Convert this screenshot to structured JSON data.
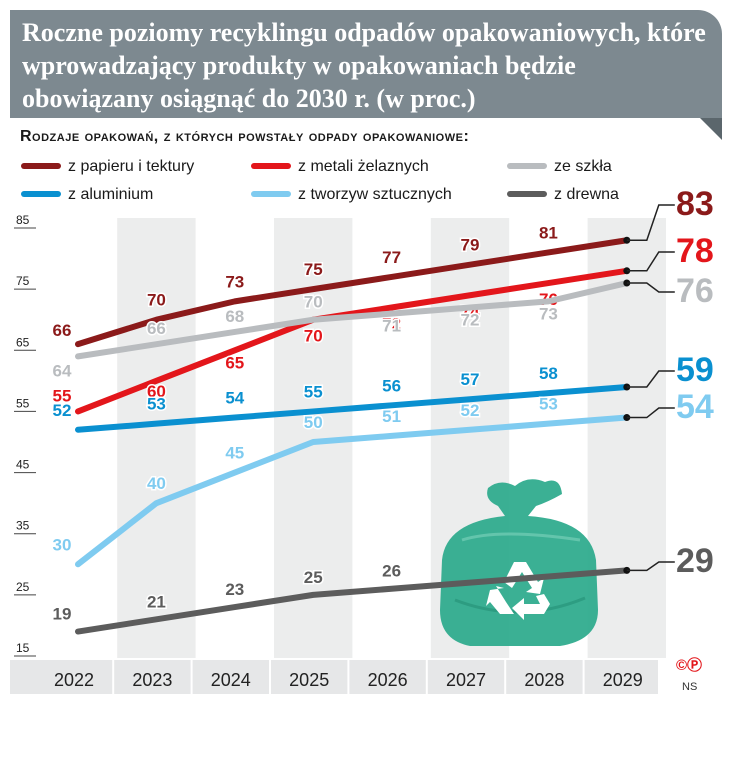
{
  "title": "Roczne poziomy recyklingu odpadów opakowaniowych, które wprowadzający produkty w opakowaniach będzie obowiązany osiągnąć do 2030 r. (w proc.)",
  "legend_title": "Rodzaje opakowań, z których powstały odpady opakowaniowe:",
  "credit": {
    "copyright": "©Ⓟ",
    "author": "NS"
  },
  "chart_data": {
    "type": "line",
    "x": [
      "2022",
      "2023",
      "2024",
      "2025",
      "2026",
      "2027",
      "2028",
      "2029"
    ],
    "ylim": [
      15,
      85
    ],
    "yticks": [
      15,
      25,
      35,
      45,
      55,
      65,
      75,
      85
    ],
    "grid": false,
    "legend_position": "top",
    "series": [
      {
        "name": "z papieru i tektury",
        "color": "#8b1a1a",
        "values": [
          66,
          70,
          73,
          75,
          77,
          79,
          81,
          83
        ],
        "labels": [
          "66",
          "70",
          "73",
          "75",
          "77",
          "79",
          "81",
          ""
        ],
        "final_label": "83"
      },
      {
        "name": "z metali żelaznych",
        "color": "#e3161b",
        "values": [
          55,
          60,
          65,
          70,
          72,
          74,
          76,
          78
        ],
        "labels": [
          "55",
          "60",
          "65",
          "70",
          "72",
          "74",
          "76",
          ""
        ],
        "final_label": "78"
      },
      {
        "name": "ze szkła",
        "color": "#b9bcbf",
        "values": [
          64,
          66,
          68,
          70,
          71,
          72,
          73,
          76
        ],
        "labels": [
          "64",
          "66",
          "68",
          "70",
          "71",
          "72",
          "73",
          ""
        ],
        "final_label": "76"
      },
      {
        "name": "z aluminium",
        "color": "#0a90d0",
        "values": [
          52,
          53,
          54,
          55,
          56,
          57,
          58,
          59
        ],
        "labels": [
          "52",
          "53",
          "54",
          "55",
          "56",
          "57",
          "58",
          ""
        ],
        "final_label": "59"
      },
      {
        "name": "z tworzyw sztucznych",
        "color": "#7fcbf0",
        "values": [
          30,
          40,
          45,
          50,
          51,
          52,
          53,
          54
        ],
        "labels": [
          "30",
          "40",
          "45",
          "50",
          "51",
          "52",
          "53",
          ""
        ],
        "final_label": "54"
      },
      {
        "name": "z drewna",
        "color": "#5c5c5c",
        "values": [
          19,
          21,
          23,
          25,
          26,
          27,
          28,
          29
        ],
        "labels": [
          "19",
          "21",
          "23",
          "25",
          "26",
          "",
          "",
          ""
        ],
        "final_label": "29"
      }
    ]
  }
}
